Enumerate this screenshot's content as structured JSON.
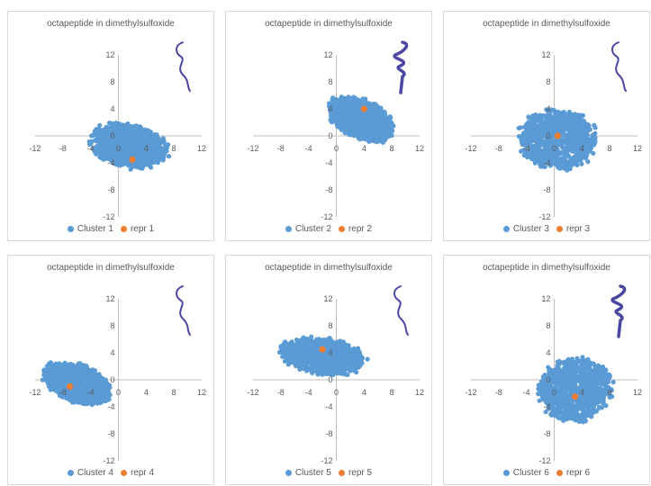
{
  "colors": {
    "cluster": "#5b9bd5",
    "repr": "#ed7d31",
    "peptide": "#4a47a3",
    "axis": "#bfbfbf"
  },
  "chart_data": [
    {
      "type": "scatter",
      "title": "octapeptide in dimethylsulfoxide",
      "xlim": [
        -12,
        12
      ],
      "ylim": [
        -12,
        12
      ],
      "xticks": [
        "-12",
        "-8",
        "-4",
        "0",
        "4",
        "8",
        "12"
      ],
      "yticks": [
        "12",
        "8",
        "4",
        "0",
        "-4",
        "-8",
        "-12"
      ],
      "series": [
        {
          "name": "Cluster 1",
          "cloud": {
            "cx": 1.5,
            "cy": -1.5,
            "rx": 5.5,
            "ry": 3.2,
            "rot": -12
          }
        },
        {
          "name": "repr 1",
          "points": [
            [
              2,
              -3.5
            ]
          ]
        }
      ],
      "peptide_icon": "coil-peptide-icon"
    },
    {
      "type": "scatter",
      "title": "octapeptide in dimethylsulfoxide",
      "xlim": [
        -12,
        12
      ],
      "ylim": [
        -12,
        12
      ],
      "xticks": [
        "-12",
        "-8",
        "-4",
        "0",
        "4",
        "8",
        "12"
      ],
      "yticks": [
        "12",
        "8",
        "4",
        "0",
        "-4",
        "-8",
        "-12"
      ],
      "series": [
        {
          "name": "Cluster 2",
          "cloud": {
            "cx": 3.5,
            "cy": 2.5,
            "rx": 5.0,
            "ry": 2.8,
            "rot": -25
          }
        },
        {
          "name": "repr 2",
          "points": [
            [
              4,
              4
            ]
          ]
        }
      ],
      "peptide_icon": "helix-peptide-icon"
    },
    {
      "type": "scatter",
      "title": "octapeptide in dimethylsulfoxide",
      "xlim": [
        -12,
        12
      ],
      "ylim": [
        -12,
        12
      ],
      "xticks": [
        "-12",
        "-8",
        "-4",
        "0",
        "4",
        "8",
        "12"
      ],
      "yticks": [
        "12",
        "8",
        "4",
        "0",
        "-4",
        "-8",
        "-12"
      ],
      "series": [
        {
          "name": "Cluster 3",
          "cloud": {
            "cx": 0.5,
            "cy": -0.5,
            "rx": 5.5,
            "ry": 4.3,
            "rot": -5
          }
        },
        {
          "name": "repr 3",
          "points": [
            [
              0.5,
              0
            ]
          ]
        }
      ],
      "peptide_icon": "coil-peptide-icon"
    },
    {
      "type": "scatter",
      "title": "octapeptide in dimethylsulfoxide",
      "xlim": [
        -12,
        12
      ],
      "ylim": [
        -12,
        12
      ],
      "xticks": [
        "-12",
        "-8",
        "-4",
        "0",
        "4",
        "8",
        "12"
      ],
      "yticks": [
        "12",
        "8",
        "4",
        "0",
        "-4",
        "-8",
        "-12"
      ],
      "series": [
        {
          "name": "Cluster 4",
          "cloud": {
            "cx": -6.0,
            "cy": -0.5,
            "rx": 5.0,
            "ry": 2.7,
            "rot": -22
          }
        },
        {
          "name": "repr 4",
          "points": [
            [
              -7,
              -1
            ]
          ]
        }
      ],
      "peptide_icon": "coil-peptide-icon"
    },
    {
      "type": "scatter",
      "title": "octapeptide in dimethylsulfoxide",
      "xlim": [
        -12,
        12
      ],
      "ylim": [
        -12,
        12
      ],
      "xticks": [
        "-12",
        "-8",
        "-4",
        "0",
        "4",
        "8",
        "12"
      ],
      "yticks": [
        "12",
        "8",
        "4",
        "0",
        "-4",
        "-8",
        "-12"
      ],
      "series": [
        {
          "name": "Cluster 5",
          "cloud": {
            "cx": -2.0,
            "cy": 3.5,
            "rx": 6.0,
            "ry": 2.6,
            "rot": -8
          }
        },
        {
          "name": "repr 5",
          "points": [
            [
              -2,
              4.5
            ]
          ]
        }
      ],
      "peptide_icon": "coil-peptide-icon"
    },
    {
      "type": "scatter",
      "title": "octapeptide in dimethylsulfoxide",
      "xlim": [
        -12,
        12
      ],
      "ylim": [
        -12,
        12
      ],
      "xticks": [
        "-12",
        "-8",
        "-4",
        "0",
        "4",
        "8",
        "12"
      ],
      "yticks": [
        "12",
        "8",
        "4",
        "0",
        "-4",
        "-8",
        "-12"
      ],
      "series": [
        {
          "name": "Cluster 6",
          "cloud": {
            "cx": 3.0,
            "cy": -1.5,
            "rx": 5.2,
            "ry": 4.6,
            "rot": 20
          }
        },
        {
          "name": "repr 6",
          "points": [
            [
              3,
              -2.5
            ]
          ]
        }
      ],
      "peptide_icon": "helix-peptide-icon"
    }
  ]
}
